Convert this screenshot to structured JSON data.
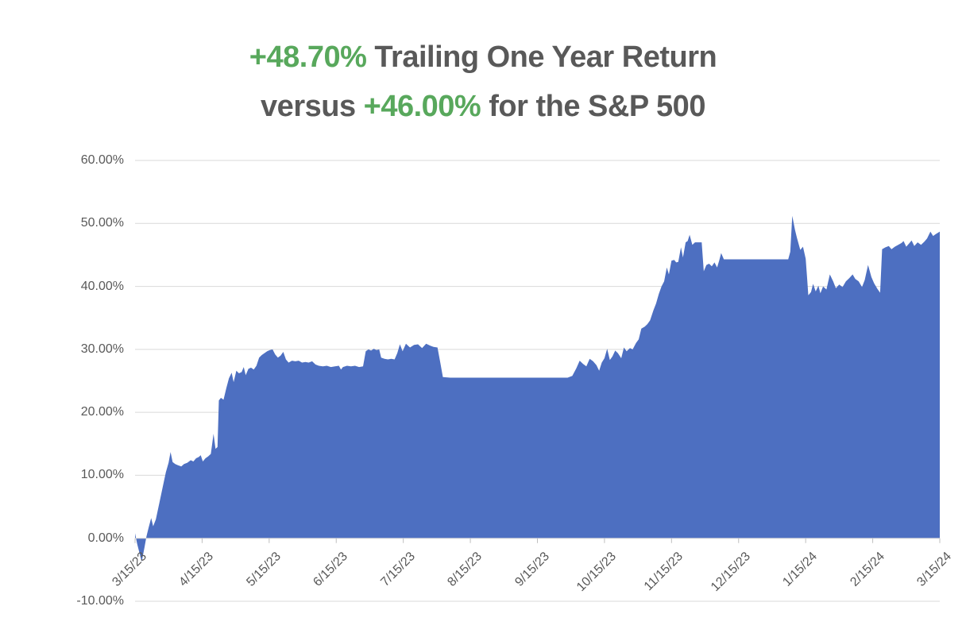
{
  "title": {
    "line1_highlight": "+48.70%",
    "line1_text": " Trailing One Year Return",
    "line2_pre": "versus ",
    "line2_highlight": "+46.00%",
    "line2_text": " for the S&P 500",
    "highlight_color": "#58A85C",
    "text_color": "#595959"
  },
  "chart_data": {
    "type": "area",
    "title": "+48.70% Trailing One Year Return versus +46.00% for the S&P 500",
    "series_name": "Trailing One Year Return",
    "stated_final_return_pct": 48.7,
    "stated_sp500_return_pct": 46.0,
    "ylim": [
      -10,
      60
    ],
    "y_tick_step": 10,
    "y_tick_labels": [
      "60.00%",
      "50.00%",
      "40.00%",
      "30.00%",
      "20.00%",
      "10.00%",
      "0.00%",
      "-10.00%"
    ],
    "x_tick_labels": [
      "3/15/23",
      "4/15/23",
      "5/15/23",
      "6/15/23",
      "7/15/23",
      "8/15/23",
      "9/15/23",
      "10/15/23",
      "11/15/23",
      "12/15/23",
      "1/15/24",
      "2/15/24",
      "3/15/24"
    ],
    "grid": true,
    "legend": "none",
    "baseline": 0,
    "area_color": "#4D6FC1",
    "gridline_color": "#D9D9D9",
    "tick_color": "#BFBFBF",
    "axis_label_color": "#595959",
    "points_unit": "x = months since 3/15/23 (0-12), y = trailing one year return in percent",
    "points": [
      [
        0,
        0.8
      ],
      [
        0.03,
        -0.8
      ],
      [
        0.07,
        -2.5
      ],
      [
        0.1,
        -3.7
      ],
      [
        0.14,
        -1.5
      ],
      [
        0.17,
        0.3
      ],
      [
        0.2,
        1.6
      ],
      [
        0.24,
        3.2
      ],
      [
        0.27,
        1.9
      ],
      [
        0.31,
        3
      ],
      [
        0.36,
        5.5
      ],
      [
        0.41,
        8
      ],
      [
        0.46,
        10.5
      ],
      [
        0.5,
        12
      ],
      [
        0.53,
        13.7
      ],
      [
        0.56,
        12.1
      ],
      [
        0.6,
        11.8
      ],
      [
        0.64,
        11.6
      ],
      [
        0.69,
        11.4
      ],
      [
        0.73,
        11.8
      ],
      [
        0.78,
        12
      ],
      [
        0.83,
        12.4
      ],
      [
        0.87,
        12.2
      ],
      [
        0.91,
        12.7
      ],
      [
        0.95,
        12.9
      ],
      [
        0.98,
        13.2
      ],
      [
        1.01,
        12.2
      ],
      [
        1.05,
        12.7
      ],
      [
        1.09,
        13
      ],
      [
        1.13,
        13.4
      ],
      [
        1.17,
        16.6
      ],
      [
        1.2,
        14.2
      ],
      [
        1.23,
        14.5
      ],
      [
        1.25,
        21.9
      ],
      [
        1.28,
        22.3
      ],
      [
        1.32,
        22
      ],
      [
        1.36,
        23.8
      ],
      [
        1.4,
        25.4
      ],
      [
        1.44,
        26.3
      ],
      [
        1.47,
        24.8
      ],
      [
        1.51,
        26.6
      ],
      [
        1.55,
        26.2
      ],
      [
        1.59,
        26.4
      ],
      [
        1.62,
        27.2
      ],
      [
        1.65,
        25.9
      ],
      [
        1.69,
        26.9
      ],
      [
        1.73,
        27.1
      ],
      [
        1.77,
        26.8
      ],
      [
        1.81,
        27.4
      ],
      [
        1.85,
        28.7
      ],
      [
        1.89,
        29.1
      ],
      [
        1.93,
        29.4
      ],
      [
        1.97,
        29.7
      ],
      [
        2.01,
        29.9
      ],
      [
        2.05,
        30
      ],
      [
        2.09,
        29.2
      ],
      [
        2.13,
        28.7
      ],
      [
        2.17,
        29
      ],
      [
        2.21,
        29.6
      ],
      [
        2.25,
        28.4
      ],
      [
        2.29,
        27.9
      ],
      [
        2.34,
        28.2
      ],
      [
        2.39,
        28.1
      ],
      [
        2.44,
        28.2
      ],
      [
        2.49,
        27.9
      ],
      [
        2.54,
        28
      ],
      [
        2.59,
        27.9
      ],
      [
        2.64,
        28.1
      ],
      [
        2.69,
        27.6
      ],
      [
        2.74,
        27.4
      ],
      [
        2.8,
        27.3
      ],
      [
        2.86,
        27.4
      ],
      [
        2.92,
        27.2
      ],
      [
        2.98,
        27.3
      ],
      [
        3.04,
        27.4
      ],
      [
        3.07,
        26.8
      ],
      [
        3.1,
        27.2
      ],
      [
        3.16,
        27.4
      ],
      [
        3.22,
        27.3
      ],
      [
        3.28,
        27.4
      ],
      [
        3.34,
        27.2
      ],
      [
        3.4,
        27.3
      ],
      [
        3.44,
        29.7
      ],
      [
        3.48,
        30
      ],
      [
        3.52,
        29.8
      ],
      [
        3.56,
        30.1
      ],
      [
        3.6,
        29.9
      ],
      [
        3.64,
        30
      ],
      [
        3.67,
        28.7
      ],
      [
        3.72,
        28.5
      ],
      [
        3.77,
        28.4
      ],
      [
        3.82,
        28.5
      ],
      [
        3.87,
        28.4
      ],
      [
        3.91,
        29.4
      ],
      [
        3.95,
        30.8
      ],
      [
        3.99,
        29.7
      ],
      [
        4.04,
        30.9
      ],
      [
        4.1,
        30.3
      ],
      [
        4.16,
        30.7
      ],
      [
        4.22,
        30.8
      ],
      [
        4.28,
        30.2
      ],
      [
        4.34,
        30.9
      ],
      [
        4.4,
        30.6
      ],
      [
        4.45,
        30.4
      ],
      [
        4.51,
        30.3
      ],
      [
        4.55,
        28
      ],
      [
        4.59,
        25.6
      ],
      [
        4.7,
        25.5
      ],
      [
        4.9,
        25.5
      ],
      [
        5.1,
        25.5
      ],
      [
        5.3,
        25.5
      ],
      [
        5.5,
        25.5
      ],
      [
        5.7,
        25.5
      ],
      [
        5.9,
        25.5
      ],
      [
        6.1,
        25.5
      ],
      [
        6.3,
        25.5
      ],
      [
        6.45,
        25.5
      ],
      [
        6.52,
        25.8
      ],
      [
        6.58,
        27
      ],
      [
        6.63,
        28.2
      ],
      [
        6.68,
        27.7
      ],
      [
        6.73,
        27.3
      ],
      [
        6.78,
        28.5
      ],
      [
        6.83,
        28.1
      ],
      [
        6.88,
        27.5
      ],
      [
        6.92,
        26.6
      ],
      [
        6.96,
        27.9
      ],
      [
        7,
        28.6
      ],
      [
        7.04,
        30.1
      ],
      [
        7.08,
        28.3
      ],
      [
        7.12,
        28.9
      ],
      [
        7.16,
        29.8
      ],
      [
        7.2,
        29.4
      ],
      [
        7.25,
        28.6
      ],
      [
        7.29,
        30.3
      ],
      [
        7.33,
        29.7
      ],
      [
        7.38,
        30.2
      ],
      [
        7.42,
        30
      ],
      [
        7.47,
        31
      ],
      [
        7.51,
        31.6
      ],
      [
        7.55,
        33.3
      ],
      [
        7.6,
        33.6
      ],
      [
        7.64,
        34
      ],
      [
        7.68,
        34.6
      ],
      [
        7.73,
        36.2
      ],
      [
        7.77,
        37.3
      ],
      [
        7.81,
        38.8
      ],
      [
        7.85,
        40
      ],
      [
        7.89,
        40.8
      ],
      [
        7.93,
        43
      ],
      [
        7.96,
        41.9
      ],
      [
        8,
        44.1
      ],
      [
        8.04,
        44.2
      ],
      [
        8.07,
        43.8
      ],
      [
        8.1,
        43.9
      ],
      [
        8.14,
        46.2
      ],
      [
        8.17,
        44.6
      ],
      [
        8.21,
        47
      ],
      [
        8.24,
        47.2
      ],
      [
        8.27,
        48.2
      ],
      [
        8.31,
        46.6
      ],
      [
        8.35,
        47
      ],
      [
        8.4,
        47
      ],
      [
        8.45,
        47
      ],
      [
        8.48,
        42.4
      ],
      [
        8.52,
        43.4
      ],
      [
        8.56,
        43.6
      ],
      [
        8.6,
        43.2
      ],
      [
        8.64,
        43.8
      ],
      [
        8.68,
        43
      ],
      [
        8.71,
        44.1
      ],
      [
        8.74,
        45.3
      ],
      [
        8.78,
        44.3
      ],
      [
        8.85,
        44.3
      ],
      [
        9,
        44.3
      ],
      [
        9.2,
        44.3
      ],
      [
        9.4,
        44.3
      ],
      [
        9.6,
        44.3
      ],
      [
        9.74,
        44.3
      ],
      [
        9.77,
        45.5
      ],
      [
        9.8,
        51.2
      ],
      [
        9.84,
        49
      ],
      [
        9.87,
        47.7
      ],
      [
        9.92,
        45.8
      ],
      [
        9.96,
        46.3
      ],
      [
        10,
        44.4
      ],
      [
        10.02,
        41.5
      ],
      [
        10.04,
        38.6
      ],
      [
        10.08,
        39.1
      ],
      [
        10.11,
        40.4
      ],
      [
        10.15,
        39.2
      ],
      [
        10.19,
        40.1
      ],
      [
        10.22,
        38.9
      ],
      [
        10.26,
        40
      ],
      [
        10.31,
        39.5
      ],
      [
        10.36,
        41.9
      ],
      [
        10.41,
        40.8
      ],
      [
        10.45,
        39.7
      ],
      [
        10.5,
        40.3
      ],
      [
        10.55,
        39.9
      ],
      [
        10.6,
        40.8
      ],
      [
        10.65,
        41.3
      ],
      [
        10.7,
        41.9
      ],
      [
        10.74,
        41.2
      ],
      [
        10.79,
        40.8
      ],
      [
        10.84,
        39.9
      ],
      [
        10.88,
        41
      ],
      [
        10.93,
        43.4
      ],
      [
        10.98,
        41.5
      ],
      [
        11.02,
        40.5
      ],
      [
        11.07,
        39.6
      ],
      [
        11.11,
        39
      ],
      [
        11.14,
        45.9
      ],
      [
        11.19,
        46.2
      ],
      [
        11.24,
        46.4
      ],
      [
        11.28,
        45.9
      ],
      [
        11.33,
        46.3
      ],
      [
        11.38,
        46.6
      ],
      [
        11.43,
        46.9
      ],
      [
        11.46,
        47.2
      ],
      [
        11.5,
        46.3
      ],
      [
        11.54,
        46.8
      ],
      [
        11.58,
        47.3
      ],
      [
        11.62,
        46.4
      ],
      [
        11.67,
        47
      ],
      [
        11.72,
        46.6
      ],
      [
        11.77,
        47.1
      ],
      [
        11.81,
        47.6
      ],
      [
        11.86,
        48.7
      ],
      [
        11.9,
        48
      ],
      [
        11.94,
        48.3
      ],
      [
        12,
        48.7
      ]
    ]
  }
}
